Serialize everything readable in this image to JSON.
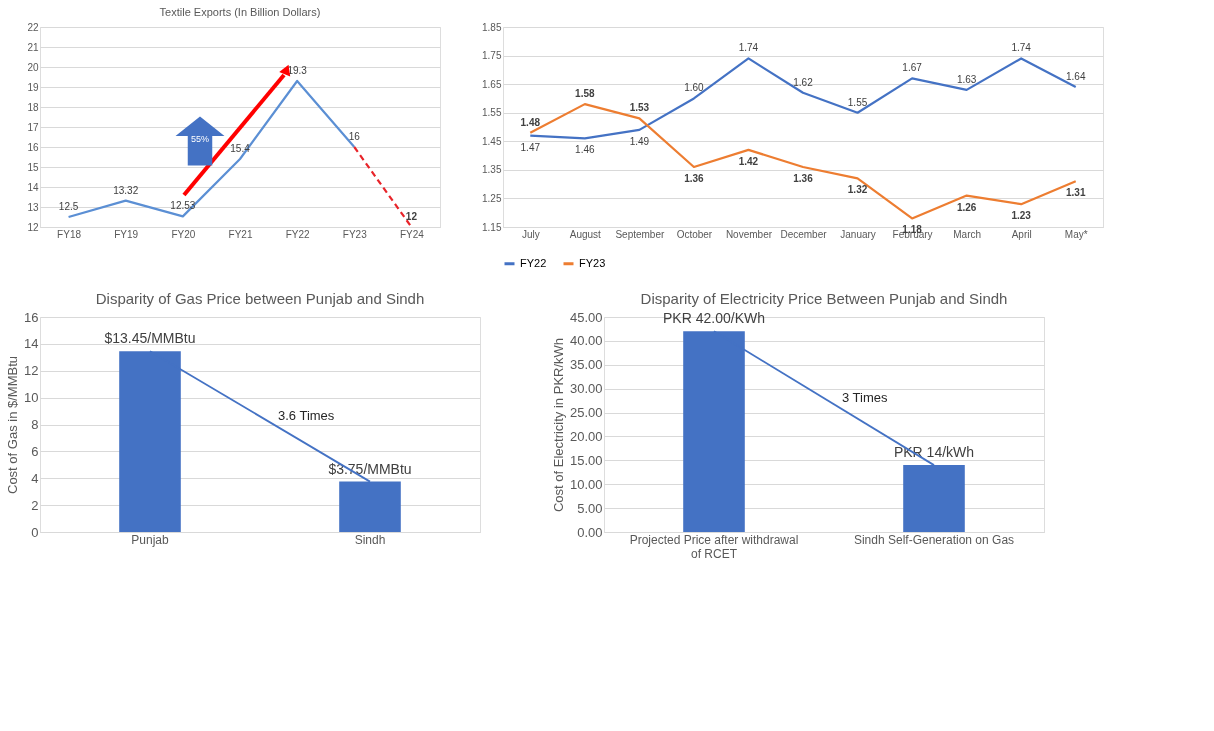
{
  "chart_data": [
    {
      "type": "line",
      "title": "Textile Exports (In Billion Dollars)",
      "categories": [
        "FY18",
        "FY19",
        "FY20",
        "FY21",
        "FY22",
        "FY23",
        "FY24"
      ],
      "ylim": [
        12,
        22
      ],
      "yticks": [
        12,
        13,
        14,
        15,
        16,
        17,
        18,
        19,
        20,
        21,
        22
      ],
      "grid": "y",
      "series": [
        {
          "color": "#5b8fd4",
          "line_style": "solid",
          "values": [
            12.5,
            13.32,
            12.53,
            15.4,
            19.3,
            16,
            null
          ],
          "value_labels": [
            "12.5",
            "13.32",
            "12.53",
            "15.4",
            "19.3",
            "16",
            null
          ]
        },
        {
          "color": "#e8242a",
          "line_style": "dashed",
          "values": [
            null,
            null,
            null,
            null,
            null,
            16,
            12
          ],
          "value_labels": [
            null,
            null,
            null,
            null,
            null,
            null,
            "12"
          ]
        }
      ],
      "annotations": [
        "55%"
      ]
    },
    {
      "type": "line",
      "categories": [
        "July",
        "August",
        "September",
        "October",
        "November",
        "December",
        "January",
        "February",
        "March",
        "April",
        "May*"
      ],
      "ylim": [
        1.15,
        1.85
      ],
      "yticks": [
        1.15,
        1.25,
        1.35,
        1.45,
        1.55,
        1.65,
        1.75,
        1.85
      ],
      "grid": "y",
      "legend": "bottom",
      "series": [
        {
          "name": "FY22",
          "color": "#4472c4",
          "line_style": "solid",
          "values": [
            1.47,
            1.46,
            1.49,
            1.6,
            1.74,
            1.62,
            1.55,
            1.67,
            1.63,
            1.74,
            1.64
          ],
          "value_labels": [
            "1.47",
            "1.46",
            "1.49",
            "1.60",
            "1.74",
            "1.62",
            "1.55",
            "1.67",
            "1.63",
            "1.74",
            "1.64"
          ]
        },
        {
          "name": "FY23",
          "color": "#ed7d31",
          "line_style": "solid",
          "values": [
            1.48,
            1.58,
            1.53,
            1.36,
            1.42,
            1.36,
            1.32,
            1.18,
            1.26,
            1.23,
            1.31
          ],
          "value_labels": [
            "1.48",
            "1.58",
            "1.53",
            "1.36",
            "1.42",
            "1.36",
            "1.32",
            "1.18",
            "1.26",
            "1.23",
            "1.31"
          ]
        }
      ]
    },
    {
      "type": "bar",
      "title": "Disparity of Gas Price between Punjab and Sindh",
      "ylabel": "Cost of Gas in $/MMBtu",
      "categories": [
        "Punjab",
        "Sindh"
      ],
      "values": [
        13.45,
        3.75
      ],
      "value_labels": [
        "$13.45/MMBtu",
        "$3.75/MMBtu"
      ],
      "color": "#4472c4",
      "ylim": [
        0,
        16
      ],
      "yticks": [
        0,
        2,
        4,
        6,
        8,
        10,
        12,
        14,
        16
      ],
      "grid": "y",
      "annotations": [
        "3.6 Times"
      ]
    },
    {
      "type": "bar",
      "title": "Disparity of Electricity Price Between Punjab and Sindh",
      "ylabel": "Cost of Electricity in PKR/kWh",
      "categories": [
        "Projected Price after withdrawal of RCET",
        "Sindh Self-Generation on Gas"
      ],
      "values": [
        42,
        14
      ],
      "value_labels": [
        "PKR 42.00/KWh",
        "PKR 14/kWh"
      ],
      "color": "#4472c4",
      "ylim": [
        0,
        45
      ],
      "yticks": [
        {
          "value": 0,
          "label": "0.00"
        },
        {
          "value": 5,
          "label": "5.00"
        },
        {
          "value": 10,
          "label": "10.00"
        },
        {
          "value": 15,
          "label": "15.00"
        },
        {
          "value": 20,
          "label": "20.00"
        },
        {
          "value": 25,
          "label": "25.00"
        },
        {
          "value": 30,
          "label": "30.00"
        },
        {
          "value": 35,
          "label": "35.00"
        },
        {
          "value": 40,
          "label": "40.00"
        },
        {
          "value": 45,
          "label": "45.00"
        }
      ],
      "grid": "y",
      "annotations": [
        "3 Times"
      ]
    }
  ]
}
